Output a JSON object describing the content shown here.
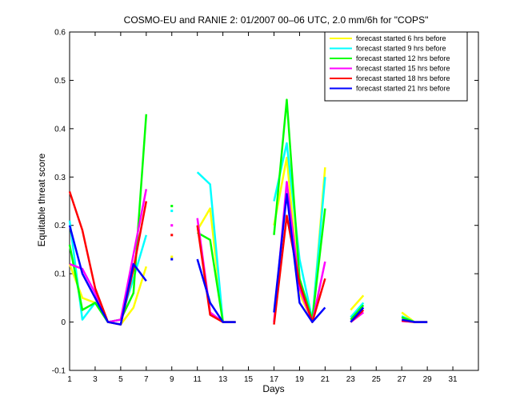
{
  "chart_data": {
    "type": "line",
    "title": "COSMO-EU and RANIE 2: 01/2007 00–06 UTC, 2.0 mm/6h for \"COPS\"",
    "xlabel": "Days",
    "ylabel": "Equitable threat score",
    "xlim": [
      1,
      33
    ],
    "ylim": [
      -0.1,
      0.6
    ],
    "xticks": [
      "1",
      "3",
      "5",
      "7",
      "9",
      "11",
      "13",
      "15",
      "17",
      "19",
      "21",
      "23",
      "25",
      "27",
      "29",
      "31"
    ],
    "xtick_values": [
      1,
      3,
      5,
      7,
      9,
      11,
      13,
      15,
      17,
      19,
      21,
      23,
      25,
      27,
      29,
      31
    ],
    "yticks": [
      "-0.1",
      "0",
      "0.1",
      "0.2",
      "0.3",
      "0.4",
      "0.5",
      "0.6"
    ],
    "ytick_values": [
      -0.1,
      0,
      0.1,
      0.2,
      0.3,
      0.4,
      0.5,
      0.6
    ],
    "grid": false,
    "legend_position": "top-right",
    "x": [
      1,
      2,
      3,
      4,
      5,
      6,
      7,
      8,
      9,
      10,
      11,
      12,
      13,
      14,
      15,
      16,
      17,
      18,
      19,
      20,
      21,
      22,
      23,
      24,
      25,
      26,
      27,
      28,
      29,
      30,
      31
    ],
    "series": [
      {
        "name": "forecast started 6 hrs before",
        "color": "#ffff00",
        "values": [
          0.12,
          0.05,
          0.04,
          0.0,
          -0.005,
          0.03,
          0.115,
          null,
          0.135,
          null,
          0.19,
          0.235,
          0.0,
          0.0,
          null,
          null,
          0.2,
          0.34,
          0.06,
          0.0,
          0.32,
          null,
          0.025,
          0.055,
          null,
          null,
          0.02,
          0.0,
          0.0,
          null,
          null
        ]
      },
      {
        "name": "forecast started 9 hrs before",
        "color": "#00ffff",
        "values": [
          0.21,
          0.005,
          0.04,
          0.0,
          0.005,
          0.09,
          0.18,
          null,
          0.23,
          null,
          0.31,
          0.285,
          0.0,
          0.0,
          null,
          null,
          0.25,
          0.37,
          0.13,
          0.005,
          0.3,
          null,
          0.01,
          0.04,
          null,
          null,
          0.012,
          0.0,
          0.0,
          null,
          null
        ]
      },
      {
        "name": "forecast started 12 hrs before",
        "color": "#00ff00",
        "values": [
          0.16,
          0.025,
          0.04,
          0.0,
          0.005,
          0.06,
          0.43,
          null,
          0.24,
          null,
          0.185,
          0.17,
          0.0,
          0.0,
          null,
          null,
          0.18,
          0.46,
          0.09,
          0.005,
          0.235,
          null,
          0.005,
          0.035,
          null,
          null,
          0.01,
          0.0,
          0.0,
          null,
          null
        ]
      },
      {
        "name": "forecast started 15 hrs before",
        "color": "#ff00ff",
        "values": [
          0.12,
          0.11,
          0.06,
          0.0,
          0.005,
          0.14,
          0.275,
          null,
          0.2,
          null,
          0.215,
          0.02,
          0.0,
          0.0,
          null,
          null,
          0.0,
          0.29,
          0.07,
          0.0,
          0.125,
          null,
          0.0,
          0.02,
          null,
          null,
          0.002,
          0.0,
          0.0,
          null,
          null
        ]
      },
      {
        "name": "forecast started 18 hrs before",
        "color": "#ff0000",
        "values": [
          0.27,
          0.19,
          0.07,
          0.0,
          -0.005,
          0.11,
          0.25,
          null,
          0.18,
          null,
          0.2,
          0.015,
          0.0,
          0.0,
          null,
          null,
          -0.005,
          0.22,
          0.08,
          0.0,
          0.09,
          null,
          0.0,
          0.025,
          null,
          null,
          0.003,
          0.0,
          0.0,
          null,
          null
        ]
      },
      {
        "name": "forecast started 21 hrs before",
        "color": "#0000ff",
        "values": [
          0.2,
          0.1,
          0.05,
          0.0,
          -0.005,
          0.12,
          0.085,
          null,
          0.13,
          null,
          0.13,
          0.04,
          0.0,
          0.0,
          null,
          null,
          0.02,
          0.265,
          0.04,
          0.0,
          0.03,
          null,
          0.0,
          0.03,
          null,
          null,
          0.005,
          0.0,
          0.0,
          null,
          null
        ]
      }
    ]
  }
}
